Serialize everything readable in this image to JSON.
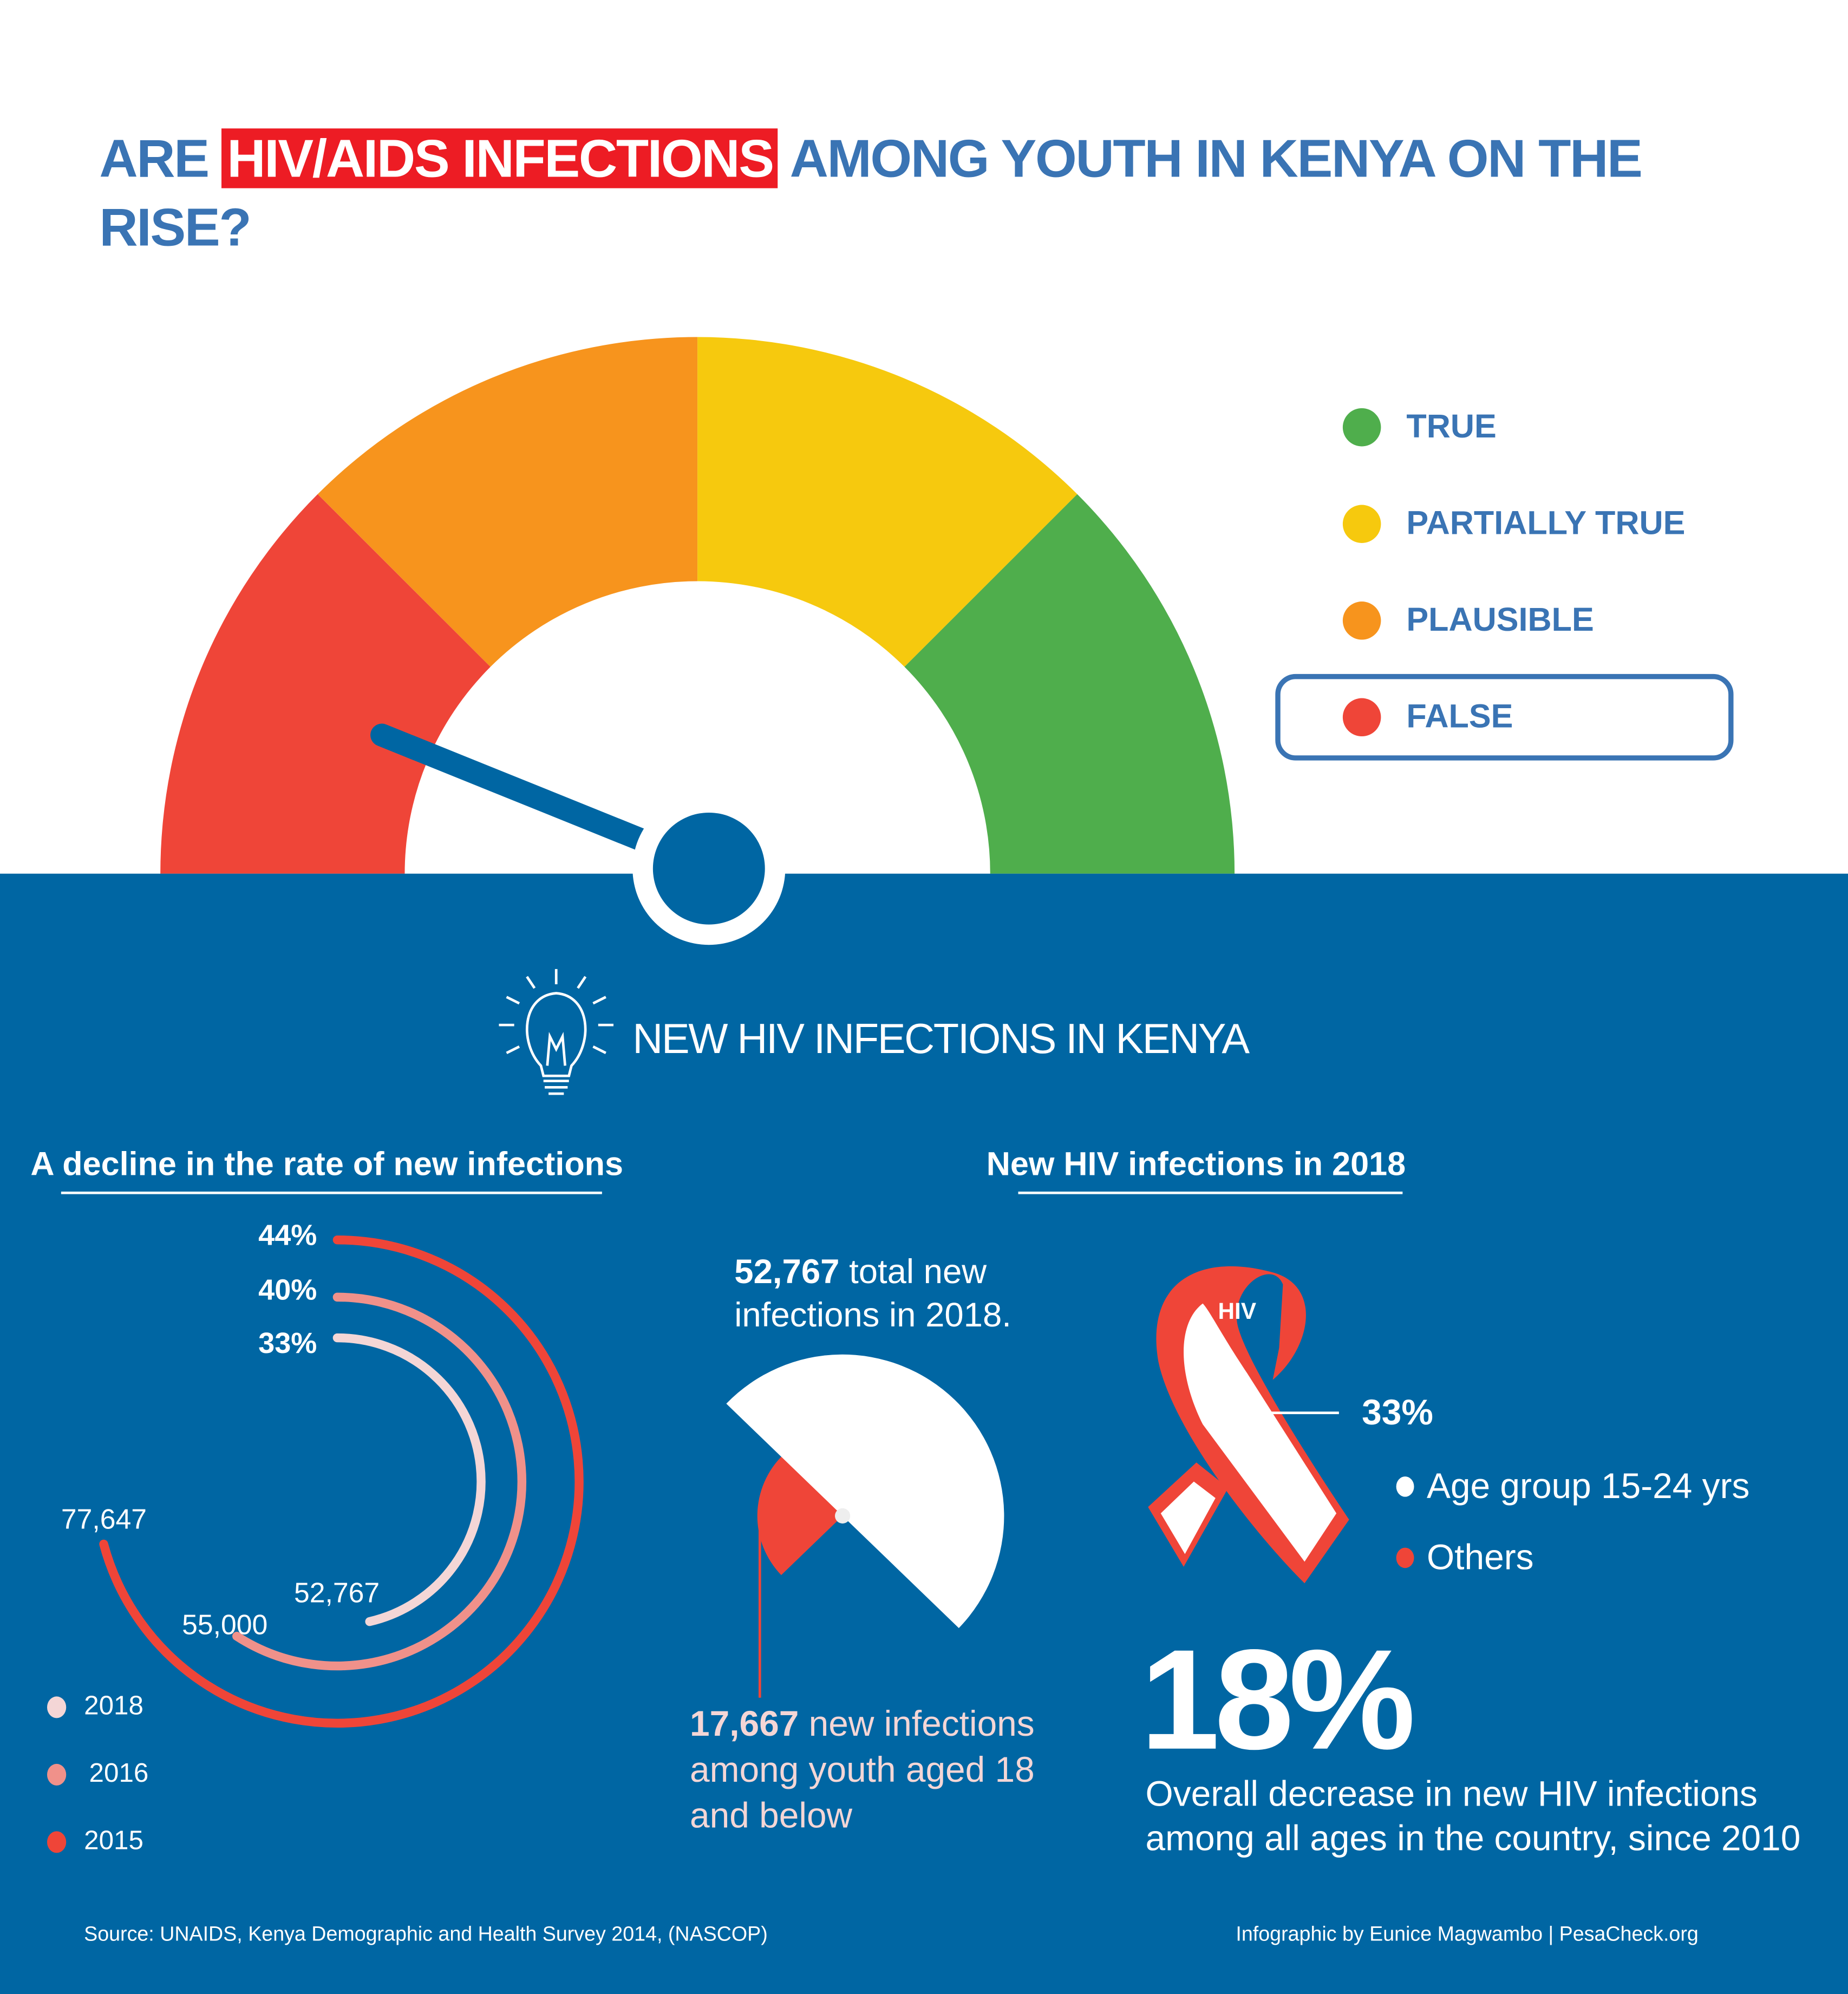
{
  "title": {
    "pre": "ARE ",
    "highlight": "HIV/AIDS INFECTIONS",
    "post": " AMONG YOUTH IN KENYA ON THE RISE?"
  },
  "colors": {
    "brand_blue": "#0066a3",
    "title_blue": "#3a74b4",
    "red": "#ef4538",
    "orange": "#f7941d",
    "yellow": "#f6c90e",
    "green": "#4fae4c",
    "pink": "#f0918a",
    "light_pink": "#f4d6d6"
  },
  "verdict": {
    "selected": "FALSE",
    "options": [
      {
        "label": "TRUE",
        "color": "#4fae4c"
      },
      {
        "label": "PARTIALLY TRUE",
        "color": "#f6c90e"
      },
      {
        "label": "PLAUSIBLE",
        "color": "#f7941d"
      },
      {
        "label": "FALSE",
        "color": "#ef4538"
      }
    ]
  },
  "section_title": "NEW HIV INFECTIONS IN KENYA",
  "section_icon": "lightbulb-icon",
  "decline": {
    "heading": "A decline in the rate of new infections",
    "series": [
      {
        "year": "2015",
        "value": "77,647",
        "percent": "44%",
        "color": "#ef4538"
      },
      {
        "year": "2016",
        "value": "55,000",
        "percent": "40%",
        "color": "#f0918a"
      },
      {
        "year": "2018",
        "value": "52,767",
        "percent": "33%",
        "color": "#f4d6d6"
      }
    ]
  },
  "infections_2018": {
    "heading": "New HIV infections in 2018",
    "total_value": "52,767",
    "total_text": " total new infections in 2018.",
    "youth_value": "17,667",
    "youth_text": " new infections among youth aged 18 and below",
    "ribbon_label": "HIV",
    "ribbon_percent": "33%",
    "legend": [
      {
        "label": "Age group 15-24 yrs",
        "color": "#ffffff"
      },
      {
        "label": "Others",
        "color": "#ef4538"
      }
    ]
  },
  "overall": {
    "percent": "18%",
    "text": "Overall decrease in new HIV infections among all ages in the country, since 2010"
  },
  "footer": {
    "source": "Source: UNAIDS, Kenya Demographic and Health Survey 2014, (NASCOP)",
    "credit": "Infographic by Eunice Magwambo | PesaCheck.org"
  }
}
